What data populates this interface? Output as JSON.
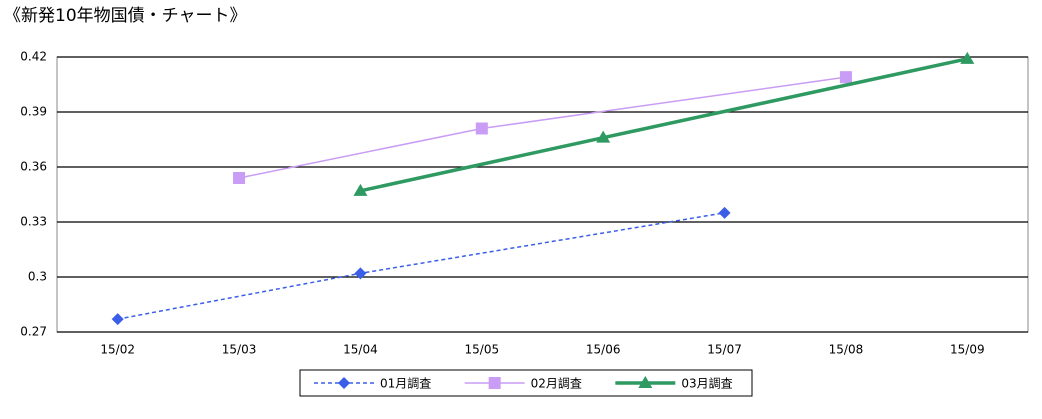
{
  "chart_data": {
    "type": "line",
    "title": "《新発10年物国債・チャート》",
    "categories": [
      "15/02",
      "15/03",
      "15/04",
      "15/05",
      "15/06",
      "15/07",
      "15/08",
      "15/09"
    ],
    "series": [
      {
        "name": "01月調査",
        "color": "#3a5ee8",
        "line_style": "dashed",
        "line_weight": "thin",
        "marker": "diamond",
        "x": [
          "15/02",
          "15/04",
          "15/07"
        ],
        "values": [
          0.277,
          0.302,
          0.335
        ]
      },
      {
        "name": "02月調査",
        "color": "#c99cf5",
        "line_style": "solid",
        "line_weight": "thin",
        "marker": "square",
        "x": [
          "15/03",
          "15/05",
          "15/08"
        ],
        "values": [
          0.354,
          0.381,
          0.409
        ]
      },
      {
        "name": "03月調査",
        "color": "#2e9960",
        "line_style": "solid",
        "line_weight": "thick",
        "marker": "triangle",
        "x": [
          "15/04",
          "15/06",
          "15/09"
        ],
        "values": [
          0.347,
          0.376,
          0.419
        ]
      }
    ],
    "ylim": [
      0.27,
      0.42
    ],
    "yticks": [
      0.27,
      0.3,
      0.33,
      0.36,
      0.39,
      0.42
    ],
    "grid": true,
    "legend": "bottom"
  }
}
